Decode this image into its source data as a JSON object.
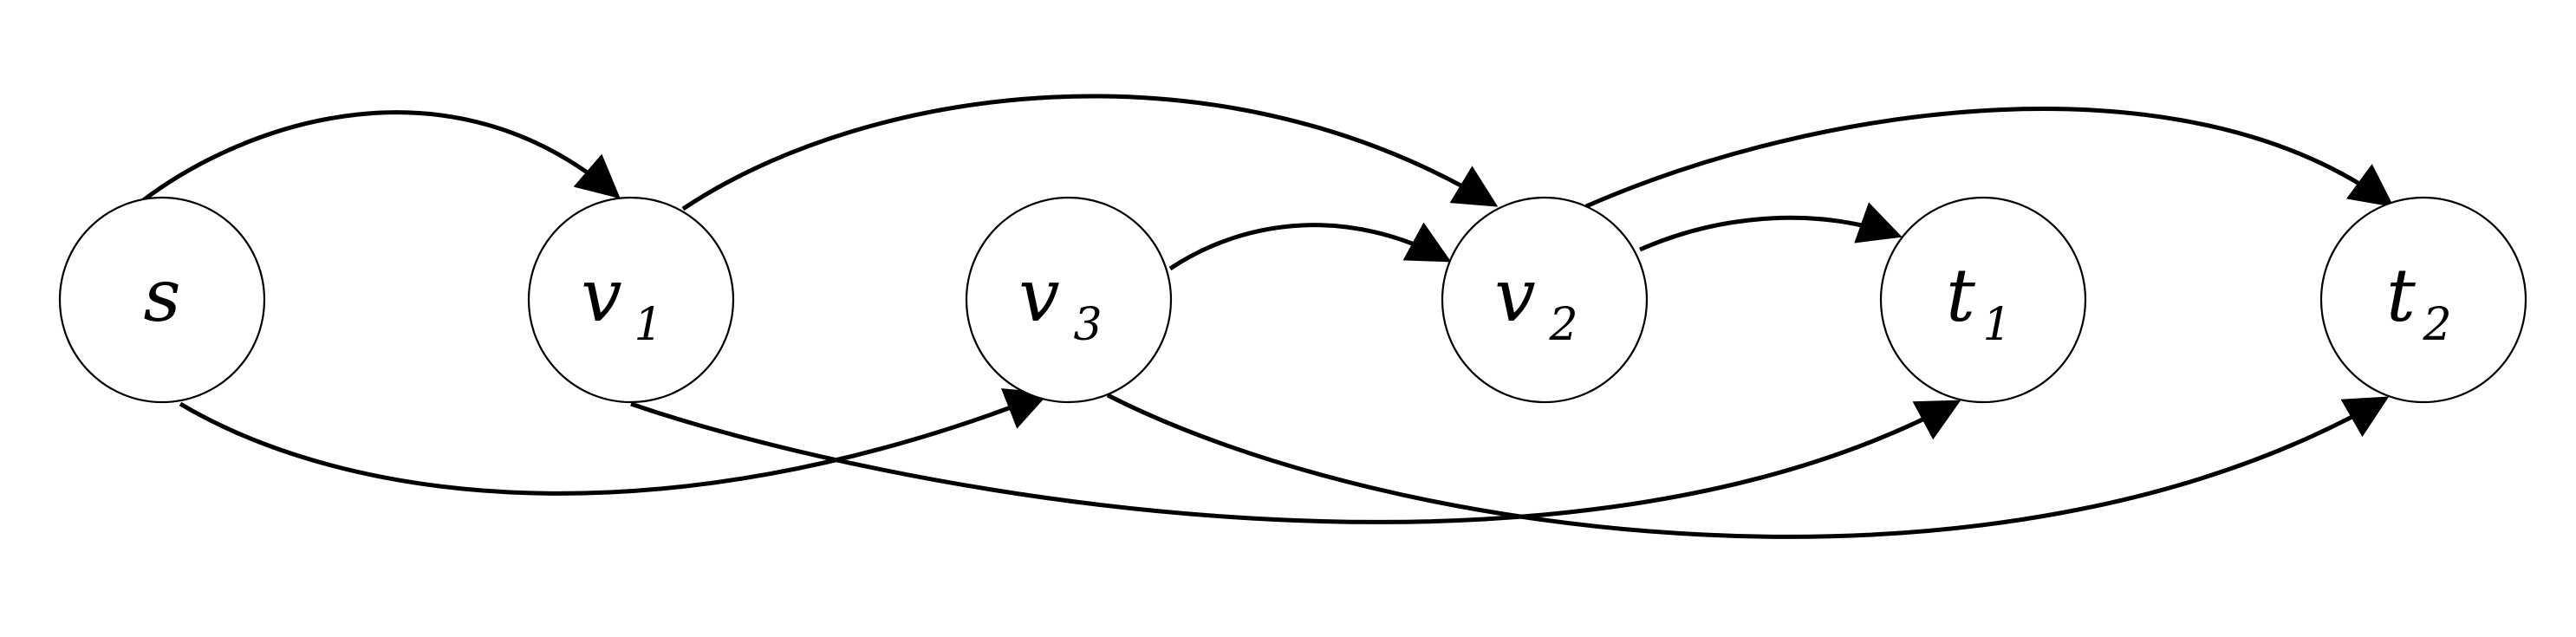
{
  "diagram": {
    "nodes": [
      {
        "id": "s",
        "label": "s",
        "subscript": ""
      },
      {
        "id": "v1",
        "label": "v",
        "subscript": "1"
      },
      {
        "id": "v3",
        "label": "v",
        "subscript": "3"
      },
      {
        "id": "v2",
        "label": "v",
        "subscript": "2"
      },
      {
        "id": "t1",
        "label": "t",
        "subscript": "1"
      },
      {
        "id": "t2",
        "label": "t",
        "subscript": "2"
      }
    ],
    "edges": [
      {
        "from": "s",
        "to": "v1"
      },
      {
        "from": "s",
        "to": "v3"
      },
      {
        "from": "v1",
        "to": "v2"
      },
      {
        "from": "v1",
        "to": "t1"
      },
      {
        "from": "v3",
        "to": "v2"
      },
      {
        "from": "v3",
        "to": "t2"
      },
      {
        "from": "v2",
        "to": "t1"
      },
      {
        "from": "v2",
        "to": "t2"
      }
    ],
    "colors": {
      "stroke": "#000000",
      "fill": "#ffffff"
    }
  }
}
